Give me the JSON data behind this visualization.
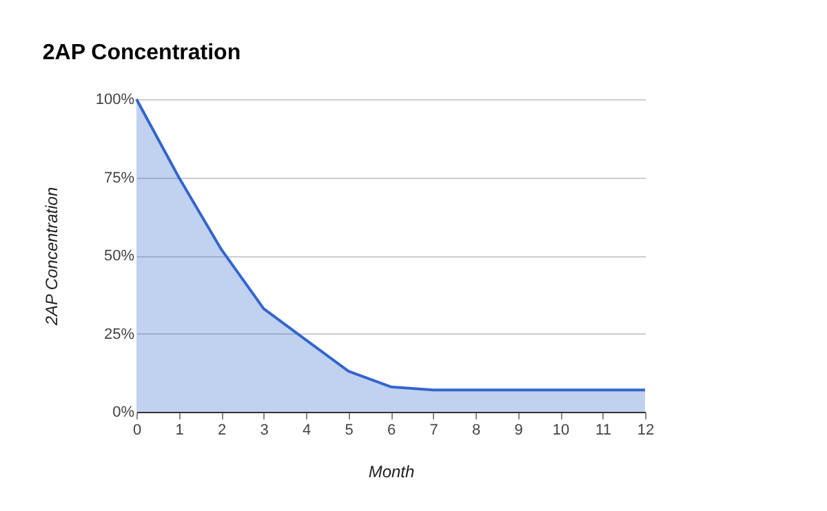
{
  "chart_data": {
    "type": "area",
    "title": "2AP Concentration",
    "xlabel": "Month",
    "ylabel": "2AP Concentration",
    "x": [
      0,
      1,
      2,
      3,
      4,
      5,
      6,
      7,
      8,
      9,
      10,
      11,
      12
    ],
    "series": [
      {
        "color": "#3366cc",
        "values": [
          100,
          75,
          52,
          33,
          23,
          13,
          8,
          7,
          7,
          7,
          7,
          7,
          7
        ]
      }
    ],
    "xlim": [
      0,
      12
    ],
    "xticks": [
      0,
      1,
      2,
      3,
      4,
      5,
      6,
      7,
      8,
      9,
      10,
      11,
      12
    ],
    "ylim": [
      0,
      100
    ],
    "yticks": [
      {
        "value": 0,
        "label": "0%"
      },
      {
        "value": 25,
        "label": "25%"
      },
      {
        "value": 50,
        "label": "50%"
      },
      {
        "value": 75,
        "label": "75%"
      },
      {
        "value": 100,
        "label": "100%"
      }
    ],
    "grid": "y"
  }
}
